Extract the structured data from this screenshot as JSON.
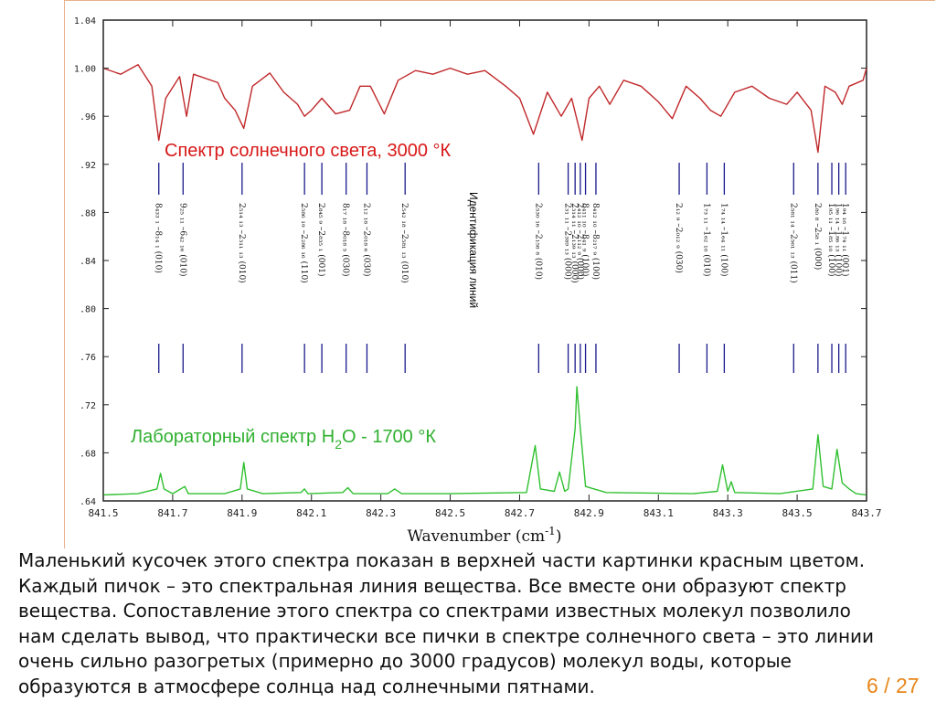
{
  "chart_data": {
    "type": "line",
    "xlabel": "Wavenumber (cm",
    "xlabel_sup": "-1",
    "xlabel_end": ")",
    "xlim": [
      841.5,
      843.7
    ],
    "ylim": [
      0.64,
      1.04
    ],
    "x_ticks": [
      "841.5",
      "841.7",
      "841.9",
      "842.1",
      "842.3",
      "842.5",
      "842.7",
      "842.9",
      "843.1",
      "843.3",
      "843.5",
      "843.7"
    ],
    "x_tick_values": [
      841.5,
      841.7,
      841.9,
      842.1,
      842.3,
      842.5,
      842.7,
      842.9,
      843.1,
      843.3,
      843.5,
      843.7
    ],
    "y_ticks": [
      "1.04",
      "1.00",
      ".96",
      ".92",
      ".88",
      ".84",
      ".80",
      ".76",
      ".72",
      ".68",
      ".64"
    ],
    "y_tick_values": [
      1.04,
      1.0,
      0.96,
      0.92,
      0.88,
      0.84,
      0.8,
      0.76,
      0.72,
      0.68,
      0.64
    ],
    "series": [
      {
        "key": "sun",
        "color": "#c0282a",
        "baseline": 1.0,
        "points": [
          [
            841.5,
            1.0
          ],
          [
            841.55,
            0.995
          ],
          [
            841.6,
            1.003
          ],
          [
            841.64,
            0.985
          ],
          [
            841.66,
            0.94
          ],
          [
            841.68,
            0.975
          ],
          [
            841.72,
            0.993
          ],
          [
            841.74,
            0.96
          ],
          [
            841.76,
            0.995
          ],
          [
            841.83,
            0.988
          ],
          [
            841.85,
            0.975
          ],
          [
            841.88,
            0.965
          ],
          [
            841.905,
            0.95
          ],
          [
            841.93,
            0.985
          ],
          [
            841.98,
            0.996
          ],
          [
            842.02,
            0.98
          ],
          [
            842.06,
            0.97
          ],
          [
            842.08,
            0.96
          ],
          [
            842.1,
            0.965
          ],
          [
            842.13,
            0.975
          ],
          [
            842.17,
            0.962
          ],
          [
            842.21,
            0.965
          ],
          [
            842.24,
            0.985
          ],
          [
            842.27,
            0.985
          ],
          [
            842.31,
            0.962
          ],
          [
            842.35,
            0.99
          ],
          [
            842.4,
            0.998
          ],
          [
            842.45,
            0.995
          ],
          [
            842.5,
            1.0
          ],
          [
            842.55,
            0.995
          ],
          [
            842.6,
            0.998
          ],
          [
            842.66,
            0.985
          ],
          [
            842.7,
            0.975
          ],
          [
            842.74,
            0.945
          ],
          [
            842.78,
            0.98
          ],
          [
            842.82,
            0.96
          ],
          [
            842.85,
            0.975
          ],
          [
            842.88,
            0.94
          ],
          [
            842.9,
            0.975
          ],
          [
            842.93,
            0.985
          ],
          [
            842.96,
            0.97
          ],
          [
            843.0,
            0.99
          ],
          [
            843.05,
            0.985
          ],
          [
            843.1,
            0.972
          ],
          [
            843.14,
            0.958
          ],
          [
            843.18,
            0.985
          ],
          [
            843.22,
            0.975
          ],
          [
            843.25,
            0.965
          ],
          [
            843.28,
            0.96
          ],
          [
            843.32,
            0.98
          ],
          [
            843.37,
            0.985
          ],
          [
            843.42,
            0.975
          ],
          [
            843.47,
            0.97
          ],
          [
            843.5,
            0.98
          ],
          [
            843.54,
            0.965
          ],
          [
            843.56,
            0.93
          ],
          [
            843.58,
            0.985
          ],
          [
            843.61,
            0.98
          ],
          [
            843.63,
            0.97
          ],
          [
            843.65,
            0.985
          ],
          [
            843.69,
            0.99
          ],
          [
            843.7,
            1.0
          ]
        ],
        "label": "Спектр солнечного света,  3000 °К"
      },
      {
        "key": "lab",
        "color": "#30c030",
        "baseline": 0.645,
        "points": [
          [
            841.5,
            0.645
          ],
          [
            841.6,
            0.646
          ],
          [
            841.655,
            0.65
          ],
          [
            841.665,
            0.663
          ],
          [
            841.675,
            0.65
          ],
          [
            841.7,
            0.646
          ],
          [
            841.735,
            0.652
          ],
          [
            841.745,
            0.646
          ],
          [
            841.85,
            0.646
          ],
          [
            841.895,
            0.65
          ],
          [
            841.905,
            0.672
          ],
          [
            841.915,
            0.65
          ],
          [
            841.96,
            0.646
          ],
          [
            842.07,
            0.647
          ],
          [
            842.08,
            0.65
          ],
          [
            842.09,
            0.646
          ],
          [
            842.19,
            0.647
          ],
          [
            842.205,
            0.651
          ],
          [
            842.22,
            0.646
          ],
          [
            842.32,
            0.646
          ],
          [
            842.34,
            0.65
          ],
          [
            842.36,
            0.646
          ],
          [
            842.5,
            0.646
          ],
          [
            842.72,
            0.647
          ],
          [
            842.745,
            0.686
          ],
          [
            842.76,
            0.65
          ],
          [
            842.8,
            0.648
          ],
          [
            842.815,
            0.664
          ],
          [
            842.83,
            0.648
          ],
          [
            842.84,
            0.65
          ],
          [
            842.86,
            0.7
          ],
          [
            842.865,
            0.735
          ],
          [
            842.875,
            0.7
          ],
          [
            842.89,
            0.652
          ],
          [
            842.95,
            0.647
          ],
          [
            843.2,
            0.646
          ],
          [
            843.27,
            0.648
          ],
          [
            843.285,
            0.67
          ],
          [
            843.3,
            0.648
          ],
          [
            843.31,
            0.656
          ],
          [
            843.32,
            0.647
          ],
          [
            843.45,
            0.646
          ],
          [
            843.545,
            0.65
          ],
          [
            843.56,
            0.695
          ],
          [
            843.575,
            0.652
          ],
          [
            843.6,
            0.65
          ],
          [
            843.615,
            0.683
          ],
          [
            843.63,
            0.655
          ],
          [
            843.65,
            0.65
          ],
          [
            843.67,
            0.646
          ],
          [
            843.7,
            0.645
          ]
        ],
        "label_main": "Лабораторный спектр H",
        "label_sub": "2",
        "label_end": "O  - 1700 °К"
      }
    ],
    "identification": {
      "title": "Идентификация линий",
      "lines": [
        {
          "x": 841.66,
          "label": "8₄₃₃ ₁ –8₁₄ ₁ (010)"
        },
        {
          "x": 841.73,
          "label": "9₂₅ ₁₁ –6₄₂ ₁₆ (010)"
        },
        {
          "x": 841.9,
          "label": "2₅₁₄ ₁₃ –2₃₁₁ ₁₃ (010)"
        },
        {
          "x": 842.08,
          "label": "2₅₈₆ ₁₉ –2₂₈₆ ₁₆ (110)"
        },
        {
          "x": 842.13,
          "label": "2₈₄₅ ₉ –2₈₃₅ ₁ (001)"
        },
        {
          "x": 842.2,
          "label": "8₁₇ ₁₈ –8₀₁₈ ₅ (030)"
        },
        {
          "x": 842.26,
          "label": "2₁₂ ₁₈ –2₀₁₈ ₆ (030)"
        },
        {
          "x": 842.37,
          "label": "2₅₄₂ ₁₈ –2₅₈₁ ₁₃ (010)"
        },
        {
          "x": 842.755,
          "label": "2₅₃₀ ₁₆ –2₁₅₈ ₈ (010)"
        },
        {
          "x": 842.84,
          "label": "2₃₁ ₁₁ –2₃₈₉ ₁₃ (000)"
        },
        {
          "x": 842.86,
          "label": "2₃₁₄ ₁₁ –2₁₃₉ ₁₃ (000)"
        },
        {
          "x": 842.875,
          "label": "2₄₁₂ ₁₀ –2₁₁₂ ₉ (000)"
        },
        {
          "x": 842.89,
          "label": "8₄₁₁ ₁₀ –8₄₁ ₉ (100)"
        },
        {
          "x": 842.92,
          "label": "8₄₁₂ ₁₀ –8₂₁₇ ₉ (100)"
        },
        {
          "x": 843.16,
          "label": "2₁₂ ₉ –2₀₁₂ ₉ (030)"
        },
        {
          "x": 843.24,
          "label": "1₇₃ ₁₁ –1₆₂ ₁₀ (010)"
        },
        {
          "x": 843.29,
          "label": "1₇₄ ₁₄ –1₆₄ ₁₁ (100)"
        },
        {
          "x": 843.49,
          "label": "2₅₈₁ ₁₄ –2₅₆₁ ₁₃ (011)"
        },
        {
          "x": 843.56,
          "label": "2₈₀ ₈ –2₅₈ ₁ (000)"
        },
        {
          "x": 843.6,
          "label": "1₉₅ ₁₁ –1₈₅ ₁₀ (100)"
        },
        {
          "x": 843.62,
          "label": "1₉₆ ₁₄ –1₈₆ ₁₃ (100)"
        },
        {
          "x": 843.64,
          "label": "1₉₄ ₁₆ –1₇₄ ₁₁ (001)"
        }
      ]
    }
  },
  "caption": {
    "lines": [
      "Маленький кусочек этого спектра показан в верхней части картинки красным цветом.",
      "Каждый пичок – это спектральная линия вещества. Все вместе они образуют спектр",
      "вещества. Сопоставление этого спектра со спектрами известных молекул позволило",
      "нам сделать вывод, что практически все пички в спектре солнечного света – это линии",
      "очень сильно разогретых (примерно до 3000 градусов) молекул воды, которые",
      "образуются в атмосфере солнца над солнечными пятнами."
    ]
  },
  "page_number": "6 / 27"
}
